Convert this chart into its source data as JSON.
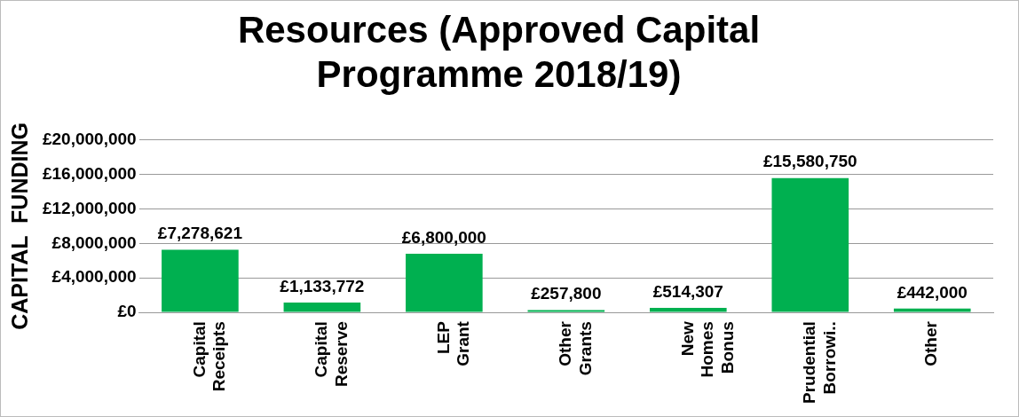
{
  "chart_data": {
    "type": "bar",
    "title": "Resources (Approved Capital Programme 2018/19)",
    "ylabel": "CAPITAL  FUNDING",
    "categories": [
      "Capital Receipts",
      "Capital Reserve",
      "LEP Grant",
      "Other Grants",
      "New Homes Bonus",
      "Prudential Borrowi..",
      "Other"
    ],
    "values": [
      7278621,
      1133772,
      6800000,
      257800,
      514307,
      15580750,
      442000
    ],
    "value_labels": [
      "£7,278,621",
      "£1,133,772",
      "£6,800,000",
      "£257,800",
      "£514,307",
      "£15,580,750",
      "£442,000"
    ],
    "color": "#00b050",
    "ylim": [
      0,
      20000000
    ],
    "yticks": [
      {
        "value": 0,
        "label": "£0"
      },
      {
        "value": 4000000,
        "label": "£4,000,000"
      },
      {
        "value": 8000000,
        "label": "£8,000,000"
      },
      {
        "value": 12000000,
        "label": "£12,000,000"
      },
      {
        "value": 16000000,
        "label": "£16,000,000"
      },
      {
        "value": 20000000,
        "label": "£20,000,000"
      }
    ],
    "grid": "y",
    "legend": false
  }
}
